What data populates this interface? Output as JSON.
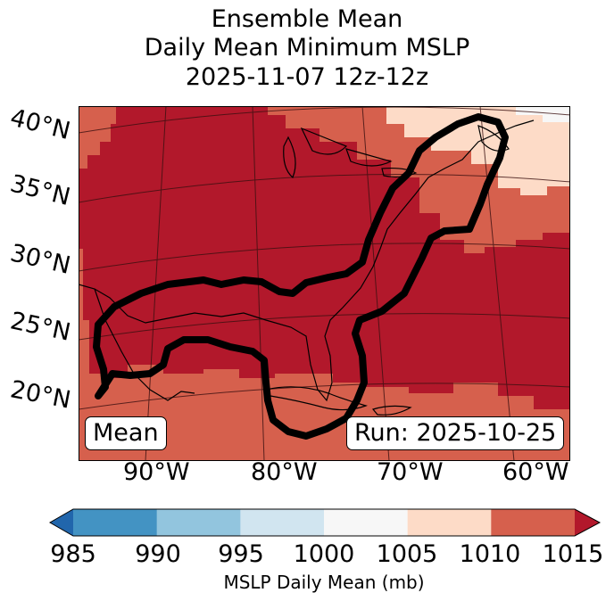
{
  "title": {
    "line1": "Ensemble Mean",
    "line2": "Daily Mean Minimum MSLP",
    "line3": "2025-11-07 12z-12z"
  },
  "lat_labels": [
    "40°N",
    "35°N",
    "30°N",
    "25°N",
    "20°N"
  ],
  "lon_labels": [
    "90°W",
    "80°W",
    "70°W",
    "60°W"
  ],
  "left_box": "Mean",
  "right_box": "Run: 2025-10-25",
  "colorbar": {
    "label": "MSLP Daily Mean (mb)",
    "ticks": [
      "985",
      "990",
      "995",
      "1000",
      "1005",
      "1010",
      "1015"
    ],
    "colors": [
      "#2166ac",
      "#4393c3",
      "#92c5de",
      "#d1e5f0",
      "#f7f7f7",
      "#fddbc7",
      "#d6604d",
      "#b2182b"
    ]
  },
  "map_colors": {
    "dominant": "#b2182b",
    "medium": "#d6604d",
    "light": "#fddbc7",
    "white": "#f7f7f7"
  }
}
